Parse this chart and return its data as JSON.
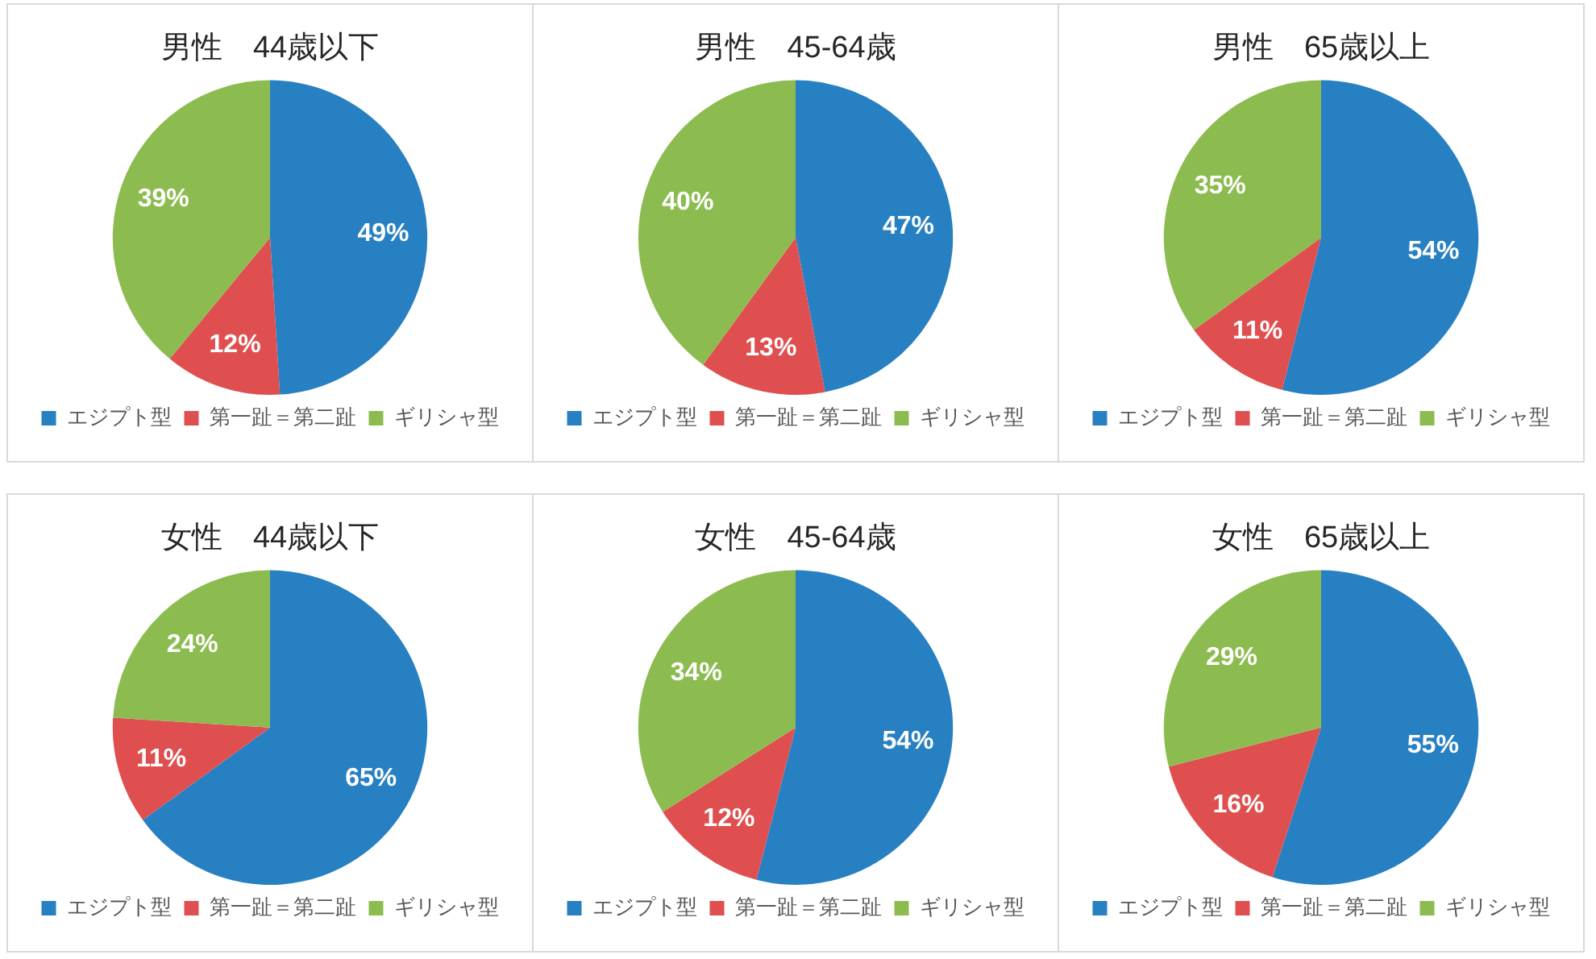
{
  "chart_data": [
    {
      "type": "pie",
      "title": "男性　44歳以下",
      "categories": [
        "エジプト型",
        "第一趾＝第二趾",
        "ギリシャ型"
      ],
      "values": [
        49,
        12,
        39
      ],
      "colors": [
        "#2780c2",
        "#e04f4f",
        "#8cbc50"
      ],
      "value_labels": [
        "49%",
        "12%",
        "39%"
      ],
      "legend": "bottom"
    },
    {
      "type": "pie",
      "title": "男性　45-64歳",
      "categories": [
        "エジプト型",
        "第一趾＝第二趾",
        "ギリシャ型"
      ],
      "values": [
        47,
        13,
        40
      ],
      "colors": [
        "#2780c2",
        "#e04f4f",
        "#8cbc50"
      ],
      "value_labels": [
        "47%",
        "13%",
        "40%"
      ],
      "legend": "bottom"
    },
    {
      "type": "pie",
      "title": "男性　65歳以上",
      "categories": [
        "エジプト型",
        "第一趾＝第二趾",
        "ギリシャ型"
      ],
      "values": [
        54,
        11,
        35
      ],
      "colors": [
        "#2780c2",
        "#e04f4f",
        "#8cbc50"
      ],
      "value_labels": [
        "54%",
        "11%",
        "35%"
      ],
      "legend": "bottom"
    },
    {
      "type": "pie",
      "title": "女性　44歳以下",
      "categories": [
        "エジプト型",
        "第一趾＝第二趾",
        "ギリシャ型"
      ],
      "values": [
        65,
        11,
        24
      ],
      "colors": [
        "#2780c2",
        "#e04f4f",
        "#8cbc50"
      ],
      "value_labels": [
        "65%",
        "11%",
        "24%"
      ],
      "legend": "bottom"
    },
    {
      "type": "pie",
      "title": "女性　45-64歳",
      "categories": [
        "エジプト型",
        "第一趾＝第二趾",
        "ギリシャ型"
      ],
      "values": [
        54,
        12,
        34
      ],
      "colors": [
        "#2780c2",
        "#e04f4f",
        "#8cbc50"
      ],
      "value_labels": [
        "54%",
        "12%",
        "34%"
      ],
      "legend": "bottom"
    },
    {
      "type": "pie",
      "title": "女性　65歳以上",
      "categories": [
        "エジプト型",
        "第一趾＝第二趾",
        "ギリシャ型"
      ],
      "values": [
        55,
        16,
        29
      ],
      "colors": [
        "#2780c2",
        "#e04f4f",
        "#8cbc50"
      ],
      "value_labels": [
        "55%",
        "16%",
        "29%"
      ],
      "legend": "bottom"
    }
  ]
}
